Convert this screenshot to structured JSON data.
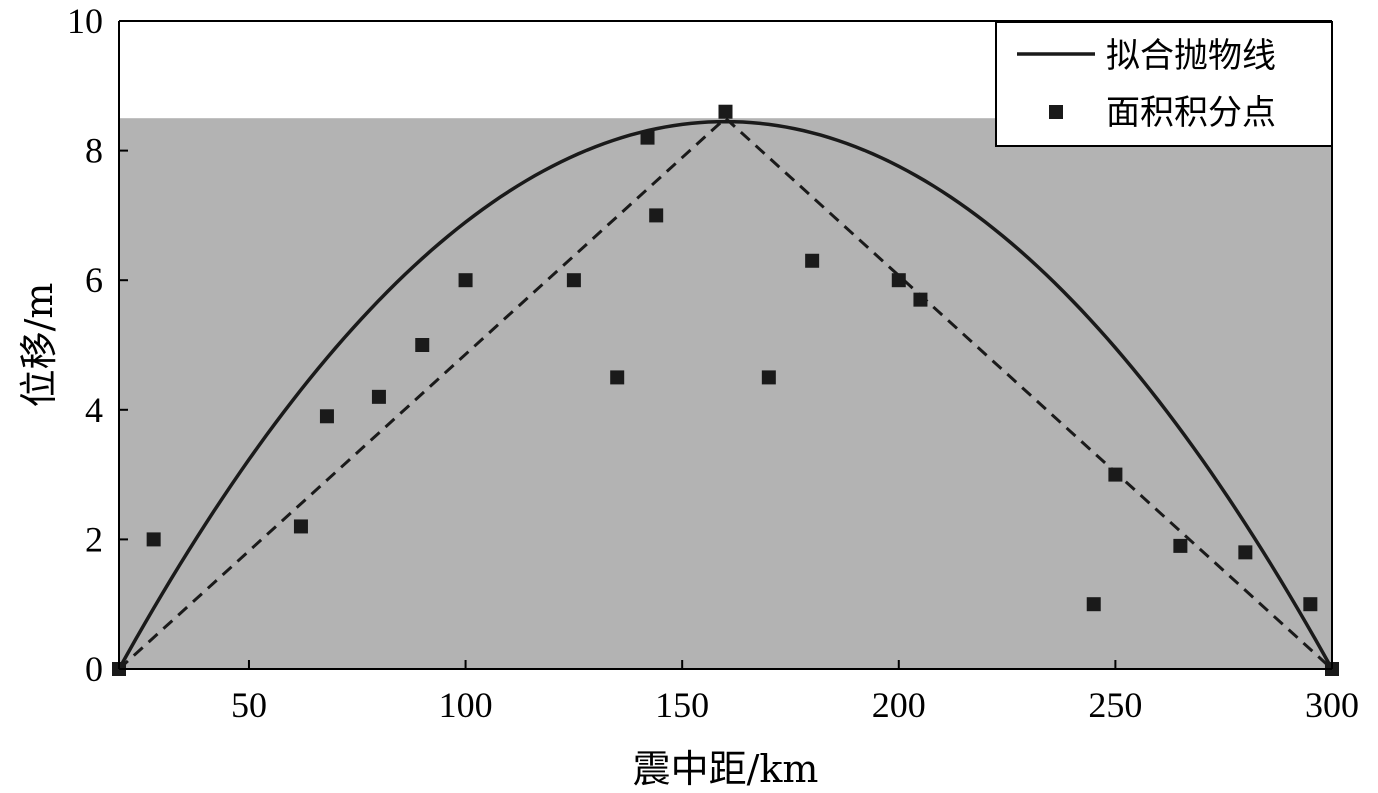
{
  "chart_data": {
    "type": "scatter",
    "title": "",
    "xlabel": "震中距/km",
    "ylabel": "位移/m",
    "xlim": [
      20,
      300
    ],
    "ylim": [
      0,
      10
    ],
    "x_ticks": [
      50,
      100,
      150,
      200,
      250,
      300
    ],
    "y_ticks": [
      0,
      2,
      4,
      6,
      8,
      10
    ],
    "grid": false,
    "legend_position": "top-right",
    "shaded_region": {
      "y_max": 8.5,
      "color": "#b3b3b3"
    },
    "series": [
      {
        "name": "拟合抛物线",
        "kind": "line",
        "style": "solid",
        "formula": "y = a * (x - 20) * (300 - x)",
        "a": 0.000431,
        "x_range": [
          20,
          300
        ],
        "vertex": [
          160,
          8.5
        ]
      },
      {
        "name": "面积积分点",
        "kind": "scatter",
        "marker": "square",
        "x": [
          20,
          28,
          62,
          68,
          80,
          90,
          100,
          125,
          135,
          142,
          144,
          160,
          170,
          180,
          200,
          205,
          245,
          250,
          265,
          280,
          295,
          300
        ],
        "y": [
          0,
          2.0,
          2.2,
          3.9,
          4.2,
          5.0,
          6.0,
          6.0,
          4.5,
          8.2,
          7.0,
          8.6,
          4.5,
          6.3,
          6.0,
          5.7,
          1.0,
          3.0,
          1.9,
          1.8,
          1.0,
          0
        ]
      },
      {
        "kind": "line",
        "style": "dashed",
        "x": [
          20,
          160,
          300
        ],
        "y": [
          0,
          8.5,
          0
        ]
      }
    ]
  }
}
